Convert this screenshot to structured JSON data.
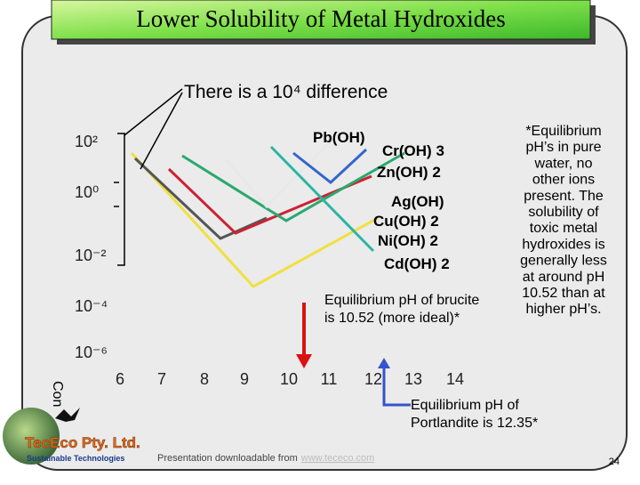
{
  "header": {
    "title": "Lower Solubility of Metal Hydroxides"
  },
  "plot": {
    "callout": "There is a 10⁴ difference",
    "y_labels": [
      "10²",
      "10⁰",
      "10⁻²",
      "10⁻⁴",
      "10⁻⁶"
    ],
    "y_axis_label": "Con",
    "x_labels": [
      "6",
      "7",
      "8",
      "9",
      "10",
      "11",
      "12",
      "13",
      "14"
    ],
    "species": [
      "Pb(OH)",
      "Cr(OH) 3",
      "Zn(OH) 2",
      "Ag(OH)",
      "Cu(OH) 2",
      "Ni(OH) 2",
      "Cd(OH) 2"
    ],
    "brucite_note": [
      "Equilibrium pH of brucite",
      "is 10.52 (more ideal)*"
    ],
    "portlandite_note": [
      "Equilibrium pH of",
      "Portlandite is 12.35*"
    ]
  },
  "side_note": [
    "*Equilibrium",
    "pH’s in pure",
    "water, no",
    "other ions",
    "present. The",
    "solubility of",
    "toxic metal",
    "hydroxides is",
    "generally less",
    "at around pH",
    "10.52 than at",
    "higher pH’s."
  ],
  "footer": {
    "logo": "TecEco Pty. Ltd.",
    "tagline": "Sustainable Technologies",
    "download": "Presentation downloadable from",
    "url": "www.tececo.com",
    "page": "24"
  }
}
